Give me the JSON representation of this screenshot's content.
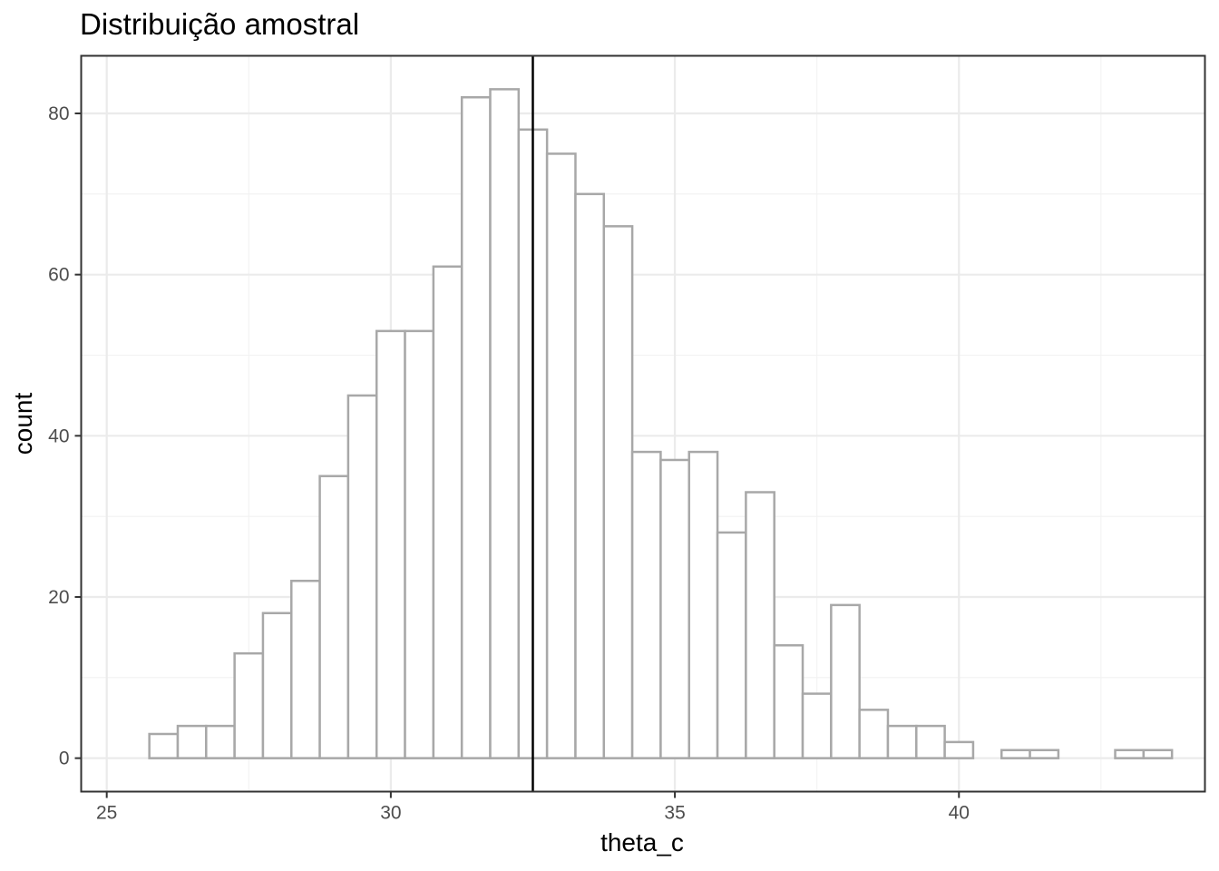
{
  "chart_data": {
    "type": "histogram",
    "title": "Distribuição amostral",
    "xlabel": "theta_c",
    "ylabel": "count",
    "xlim": [
      24.55,
      44.33
    ],
    "ylim": [
      -4.15,
      87.15
    ],
    "x_ticks": [
      25,
      30,
      35,
      40
    ],
    "y_ticks": [
      0,
      20,
      40,
      60,
      80
    ],
    "grid": true,
    "theme": "bw",
    "bar_fill": "#ffffff",
    "bar_outline": "#a8a8a8",
    "bin_width": 0.5,
    "bin_start": 25.75,
    "counts": [
      3,
      4,
      4,
      13,
      18,
      22,
      35,
      45,
      53,
      53,
      61,
      82,
      83,
      78,
      75,
      70,
      66,
      38,
      37,
      38,
      28,
      33,
      14,
      8,
      19,
      6,
      4,
      4,
      2,
      0,
      1,
      1,
      0,
      0,
      1,
      1
    ],
    "vline": {
      "x": 32.5,
      "color": "#000000"
    }
  }
}
